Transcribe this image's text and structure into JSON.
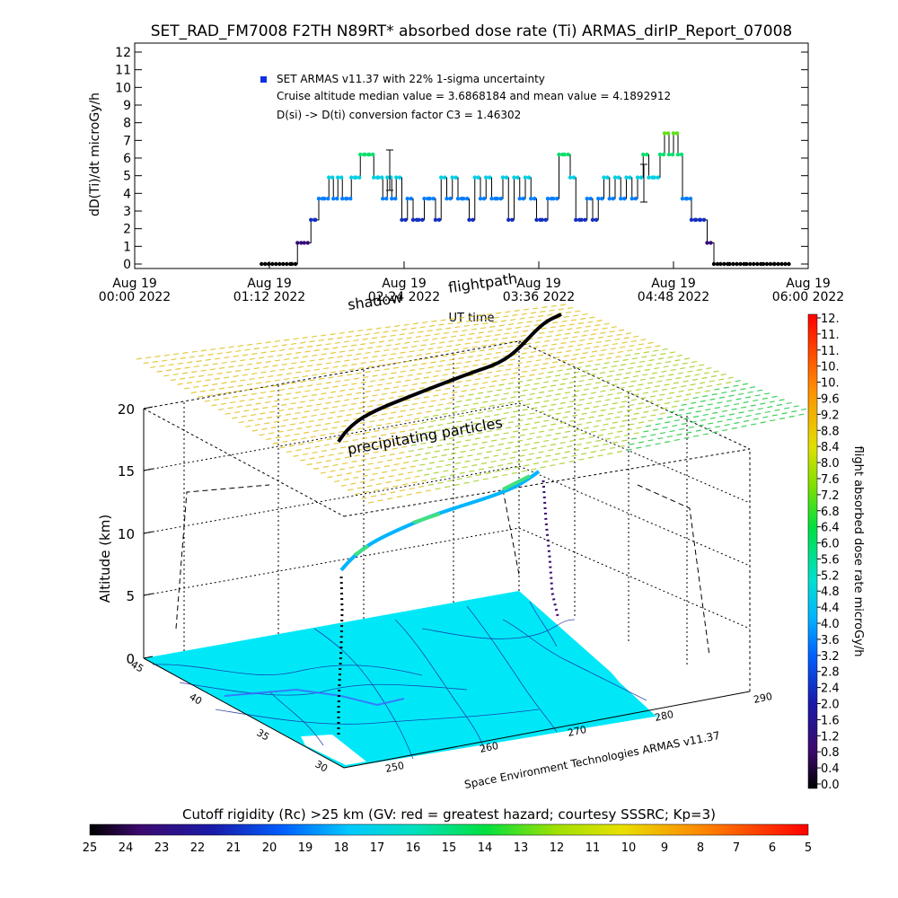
{
  "title": "SET_RAD_FM7008  F2TH N89RT* absorbed dose rate (Ti) ARMAS_dirIP_Report_07008",
  "chart_data": [
    {
      "type": "line",
      "ylabel": "dD(Ti)/dt microGy/h",
      "xlabel": "UT time",
      "ylim": [
        0,
        12
      ],
      "yticks": [
        "0",
        "1",
        "2",
        "3",
        "4",
        "5",
        "6",
        "7",
        "8",
        "9",
        "10",
        "11",
        "12"
      ],
      "xlim_hours": [
        0,
        6
      ],
      "xticks": [
        {
          "h": 0.0,
          "l1": "Aug 19",
          "l2": "00:00 2022"
        },
        {
          "h": 1.2,
          "l1": "Aug 19",
          "l2": "01:12 2022"
        },
        {
          "h": 2.4,
          "l1": "Aug 19",
          "l2": "02:24 2022"
        },
        {
          "h": 3.6,
          "l1": "Aug 19",
          "l2": "03:36 2022"
        },
        {
          "h": 4.8,
          "l1": "Aug 19",
          "l2": "04:48 2022"
        },
        {
          "h": 6.0,
          "l1": "Aug 19",
          "l2": "06:00 2022"
        }
      ],
      "legend": [
        "SET ARMAS v11.37 with 22% 1-sigma uncertainty",
        "Cruise altitude median value = 3.6868184 and mean value = 4.1892912",
        "D(si) -> D(ti) conversion factor C3 = 1.46302"
      ],
      "legend_marker_color": "#1030e0",
      "series": [
        {
          "x_hours": [
            1.13,
            1.4,
            1.45,
            1.51,
            1.57,
            1.61,
            1.64,
            1.69,
            1.73,
            1.77,
            1.81,
            1.85,
            1.89,
            1.93,
            1.97,
            2.01,
            2.05,
            2.09,
            2.13,
            2.17,
            2.21,
            2.25,
            2.29,
            2.33,
            2.38,
            2.43,
            2.48,
            2.53,
            2.58,
            2.63,
            2.68,
            2.73,
            2.78,
            2.83,
            2.88,
            2.93,
            2.98,
            3.03,
            3.08,
            3.13,
            3.18,
            3.23,
            3.28,
            3.33,
            3.38,
            3.43,
            3.48,
            3.53,
            3.58,
            3.63,
            3.68,
            3.73,
            3.78,
            3.83,
            3.88,
            3.93,
            3.98,
            4.03,
            4.08,
            4.13,
            4.18,
            4.23,
            4.28,
            4.33,
            4.38,
            4.43,
            4.48,
            4.53,
            4.58,
            4.63,
            4.68,
            4.72,
            4.76,
            4.8,
            4.84,
            4.88,
            4.92,
            4.96,
            5.0,
            5.04,
            5.1,
            5.16,
            5.22,
            5.3,
            5.45,
            5.6,
            5.7
          ],
          "values": [
            0.0,
            0.0,
            1.2,
            1.2,
            2.5,
            2.5,
            3.7,
            3.7,
            4.9,
            3.7,
            4.9,
            3.7,
            3.7,
            4.9,
            4.9,
            6.2,
            6.2,
            6.2,
            4.9,
            4.9,
            3.7,
            4.9,
            3.7,
            4.9,
            2.5,
            3.7,
            2.5,
            2.5,
            3.7,
            3.7,
            2.5,
            4.9,
            3.7,
            4.9,
            3.7,
            3.7,
            2.5,
            4.9,
            3.7,
            4.9,
            3.7,
            3.7,
            4.9,
            2.5,
            4.9,
            3.7,
            4.9,
            3.7,
            2.5,
            2.5,
            3.7,
            3.7,
            6.2,
            6.2,
            4.9,
            2.5,
            2.5,
            3.7,
            2.5,
            3.7,
            4.9,
            3.7,
            4.9,
            3.7,
            4.9,
            3.7,
            4.9,
            6.2,
            4.9,
            4.9,
            6.2,
            7.4,
            6.2,
            7.4,
            6.2,
            3.7,
            3.7,
            2.5,
            2.5,
            2.5,
            1.2,
            0.0,
            0.0,
            0.0,
            0.0,
            0.0,
            0.0
          ],
          "colorbar_scale": [
            0,
            12
          ]
        }
      ],
      "annotations": [
        "shadow",
        "flightpath"
      ]
    },
    {
      "type": "scatter",
      "ylabel": "Altitude (km)",
      "zticks": [
        "0",
        "5",
        "10",
        "15",
        "20"
      ],
      "lat_ticks": [
        "45",
        "40",
        "35",
        "30"
      ],
      "lon_ticks": [
        "250",
        "260",
        "270",
        "280",
        "290"
      ],
      "annotations": [
        "precipitating particles"
      ],
      "credit": "Space Environment Technologies ARMAS v11.37",
      "flight_altitude_km": [
        0,
        4,
        6,
        7.5,
        9,
        10,
        11,
        11.8,
        12.3,
        13,
        14,
        14.5,
        15
      ],
      "colorbar": {
        "label": "flight absorbed dose rate microGy/h",
        "ticks": [
          "0.0",
          "0.4",
          "0.8",
          "1.2",
          "1.6",
          "2.0",
          "2.4",
          "2.8",
          "3.2",
          "3.6",
          "4.0",
          "4.4",
          "4.8",
          "5.2",
          "5.6",
          "6.0",
          "6.4",
          "6.8",
          "7.2",
          "7.6",
          "8.0",
          "8.4",
          "8.8",
          "9.2",
          "9.6",
          "10.",
          "10.",
          "11.",
          "11.",
          "12."
        ],
        "range": [
          0,
          12
        ]
      }
    },
    {
      "type": "heatmap",
      "title": "Cutoff rigidity (Rc) >25 km (GV: red = greatest hazard; courtesy SSSRC; Kp=3)",
      "ticks": [
        "25",
        "24",
        "23",
        "22",
        "21",
        "20",
        "19",
        "18",
        "17",
        "16",
        "15",
        "14",
        "13",
        "12",
        "11",
        "10",
        "9",
        "8",
        "7",
        "6",
        "5"
      ],
      "range": [
        25,
        5
      ]
    }
  ]
}
